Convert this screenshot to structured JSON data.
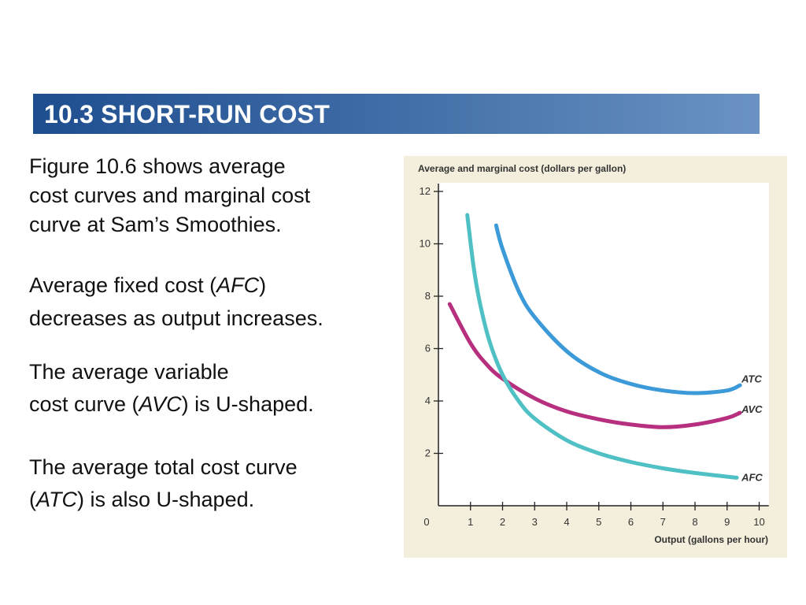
{
  "slide": {
    "title": "10.3 SHORT-RUN COST",
    "paragraphs": [
      {
        "lines": [
          [
            {
              "t": "Figure 10.6 shows average"
            }
          ],
          [
            {
              "t": "cost curves and marginal cost"
            }
          ],
          [
            {
              "t": "curve at Sam’s Smoothies."
            }
          ]
        ]
      },
      {
        "lines": [
          [
            {
              "t": "Average fixed cost ("
            },
            {
              "t": "AFC",
              "i": true
            },
            {
              "t": ")"
            }
          ],
          [
            {
              "t": "decreases as output increases."
            }
          ]
        ]
      },
      {
        "lines": [
          [
            {
              "t": "The average variable"
            }
          ],
          [
            {
              "t": "cost curve ("
            },
            {
              "t": "AVC",
              "i": true
            },
            {
              "t": ") is U-shaped."
            }
          ]
        ]
      },
      {
        "lines": [
          [
            {
              "t": "The average total cost curve"
            }
          ],
          [
            {
              "t": "("
            },
            {
              "t": "ATC",
              "i": true
            },
            {
              "t": ") is also U-shaped."
            }
          ]
        ]
      }
    ]
  },
  "chart_data": {
    "type": "line",
    "ylabel": "Average and marginal cost (dollars per gallon)",
    "xlabel": "Output (gallons per hour)",
    "xlim": [
      0,
      10.3
    ],
    "ylim": [
      0,
      12.3
    ],
    "xticks": [
      1,
      2,
      3,
      4,
      5,
      6,
      7,
      8,
      9,
      10
    ],
    "yticks": [
      2,
      4,
      6,
      8,
      10,
      12
    ],
    "origin_label": "0",
    "grid": false,
    "series": [
      {
        "name": "ATC",
        "color": "#3c9ad8",
        "label_x": 9.45,
        "label_y": 4.85,
        "x": [
          1.8,
          2,
          2.5,
          3,
          4,
          5,
          6,
          7,
          8,
          9,
          9.4
        ],
        "y": [
          10.7,
          9.8,
          8.2,
          7.2,
          5.9,
          5.1,
          4.65,
          4.4,
          4.3,
          4.4,
          4.6
        ]
      },
      {
        "name": "AVC",
        "color": "#b6307f",
        "label_x": 9.45,
        "label_y": 3.7,
        "x": [
          0.35,
          1,
          1.5,
          2,
          3,
          4,
          5,
          6,
          7,
          8,
          9,
          9.4
        ],
        "y": [
          7.7,
          6.2,
          5.4,
          4.85,
          4.1,
          3.6,
          3.3,
          3.1,
          3.0,
          3.1,
          3.35,
          3.55
        ]
      },
      {
        "name": "AFC",
        "color": "#4fc0c4",
        "label_x": 9.45,
        "label_y": 1.1,
        "x": [
          0.9,
          1.1,
          1.3,
          1.6,
          2,
          2.5,
          3,
          4,
          5,
          6,
          7,
          8,
          9,
          9.3
        ],
        "y": [
          11.1,
          9.1,
          7.7,
          6.25,
          5.0,
          4.0,
          3.33,
          2.5,
          2.0,
          1.67,
          1.43,
          1.25,
          1.11,
          1.07
        ]
      }
    ]
  }
}
